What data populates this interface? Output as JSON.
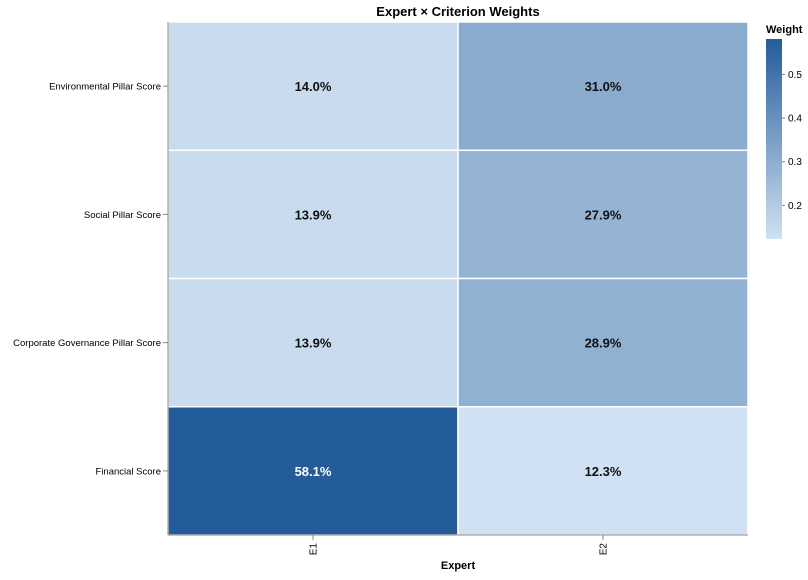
{
  "chart_data": {
    "type": "heatmap",
    "title": "Expert × Criterion Weights",
    "xlabel": "Expert",
    "ylabel": "",
    "x_categories": [
      "E1",
      "E2"
    ],
    "y_categories": [
      "Environmental Pillar Score",
      "Social Pillar Score",
      "Corporate Governance Pillar Score",
      "Financial Score"
    ],
    "cells": [
      {
        "x": "E1",
        "y": "Environmental Pillar Score",
        "value": 0.14,
        "label": "14.0%"
      },
      {
        "x": "E2",
        "y": "Environmental Pillar Score",
        "value": 0.31,
        "label": "31.0%"
      },
      {
        "x": "E1",
        "y": "Social Pillar Score",
        "value": 0.139,
        "label": "13.9%"
      },
      {
        "x": "E2",
        "y": "Social Pillar Score",
        "value": 0.279,
        "label": "27.9%"
      },
      {
        "x": "E1",
        "y": "Corporate Governance Pillar Score",
        "value": 0.139,
        "label": "13.9%"
      },
      {
        "x": "E2",
        "y": "Corporate Governance Pillar Score",
        "value": 0.289,
        "label": "28.9%"
      },
      {
        "x": "E1",
        "y": "Financial Score",
        "value": 0.581,
        "label": "58.1%"
      },
      {
        "x": "E2",
        "y": "Financial Score",
        "value": 0.123,
        "label": "12.3%"
      }
    ],
    "legend": {
      "title": "Weight",
      "position": "top-right",
      "domain": [
        0.123,
        0.581
      ],
      "ticks": [
        0.2,
        0.3,
        0.4,
        0.5
      ],
      "tick_labels": [
        "0.2",
        "0.3",
        "0.4",
        "0.5"
      ],
      "color_low": "#cfe1f2",
      "color_high": "#245c9a"
    },
    "colors": {
      "cell_border": "#ffffff",
      "axis": "#888888",
      "label_dark": "#111111",
      "label_light": "#ffffff"
    }
  }
}
